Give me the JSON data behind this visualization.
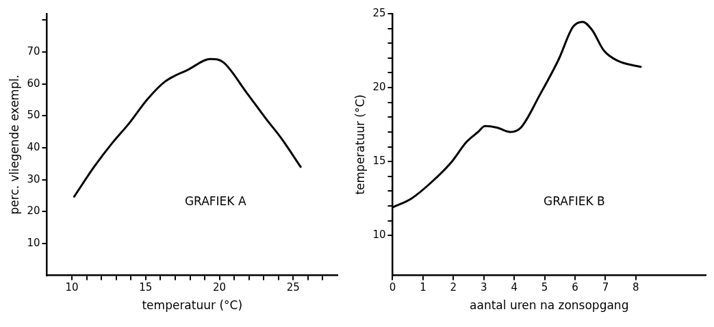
{
  "chart_data": [
    {
      "type": "line",
      "xlabel": "temperatuur (°C)",
      "ylabel": "perc. vliegende exempl.",
      "annotations": [
        "GRAFIEK A"
      ],
      "x": [
        10.15,
        11.5,
        12.7,
        13.9,
        15.1,
        16.3,
        17.85,
        19.4,
        20.25,
        21.8,
        23.1,
        24.2,
        25.5
      ],
      "series": [
        {
          "color": "#000000",
          "values": [
            24.7,
            34,
            41.3,
            47.8,
            55.1,
            60.7,
            64.4,
            67.8,
            66.8,
            57.5,
            49.4,
            42.9,
            34
          ]
        }
      ],
      "xlim": [
        8.3,
        28
      ],
      "ylim": [
        0,
        82
      ],
      "xticks": [
        10,
        {
          "value": 11,
          "label": null
        },
        {
          "value": 12,
          "label": null
        },
        {
          "value": 13,
          "label": null
        },
        {
          "value": 14,
          "label": null
        },
        15,
        {
          "value": 16,
          "label": null
        },
        {
          "value": 17,
          "label": null
        },
        {
          "value": 18,
          "label": null
        },
        {
          "value": 19,
          "label": null
        },
        20,
        {
          "value": 21,
          "label": null
        },
        {
          "value": 22,
          "label": null
        },
        {
          "value": 23,
          "label": null
        },
        {
          "value": 24,
          "label": null
        },
        25,
        {
          "value": 26,
          "label": null
        },
        {
          "value": 27,
          "label": null
        }
      ],
      "yticks": [
        10,
        20,
        30,
        40,
        50,
        60,
        70,
        {
          "value": 80,
          "label": null
        }
      ],
      "grid": false,
      "legend": false,
      "marker": "none",
      "line_style": "solid"
    },
    {
      "type": "line",
      "xlabel": "aantal uren na zonsopgang",
      "ylabel": "temperatuur (°C)",
      "annotations": [
        "GRAFIEK B"
      ],
      "x": [
        0,
        0.62,
        1.33,
        1.95,
        2.42,
        2.81,
        3.04,
        3.43,
        3.86,
        4.22,
        4.84,
        5.46,
        5.93,
        6.25,
        6.56,
        6.95,
        7.42,
        8.16
      ],
      "series": [
        {
          "color": "#000000",
          "values": [
            11.9,
            12.5,
            13.7,
            15,
            16.3,
            17,
            17.4,
            17.3,
            17,
            17.3,
            19.5,
            21.9,
            24.1,
            24.45,
            23.9,
            22.5,
            21.8,
            21.4
          ]
        }
      ],
      "xlim": [
        0,
        10.3
      ],
      "ylim": [
        7.3,
        25
      ],
      "xticks": [
        0,
        1,
        2,
        3,
        4,
        5,
        6,
        7,
        8
      ],
      "yticks": [
        10,
        {
          "value": 11,
          "label": null
        },
        {
          "value": 12,
          "label": null
        },
        {
          "value": 13,
          "label": null
        },
        {
          "value": 14,
          "label": null
        },
        15,
        {
          "value": 16,
          "label": null
        },
        {
          "value": 17,
          "label": null
        },
        {
          "value": 18,
          "label": null
        },
        {
          "value": 19,
          "label": null
        },
        20,
        {
          "value": 21,
          "label": null
        },
        {
          "value": 22,
          "label": null
        },
        {
          "value": 23,
          "label": null
        },
        {
          "value": 24,
          "label": null
        },
        25
      ],
      "grid": false,
      "legend": false,
      "marker": "none",
      "line_style": "solid"
    }
  ]
}
